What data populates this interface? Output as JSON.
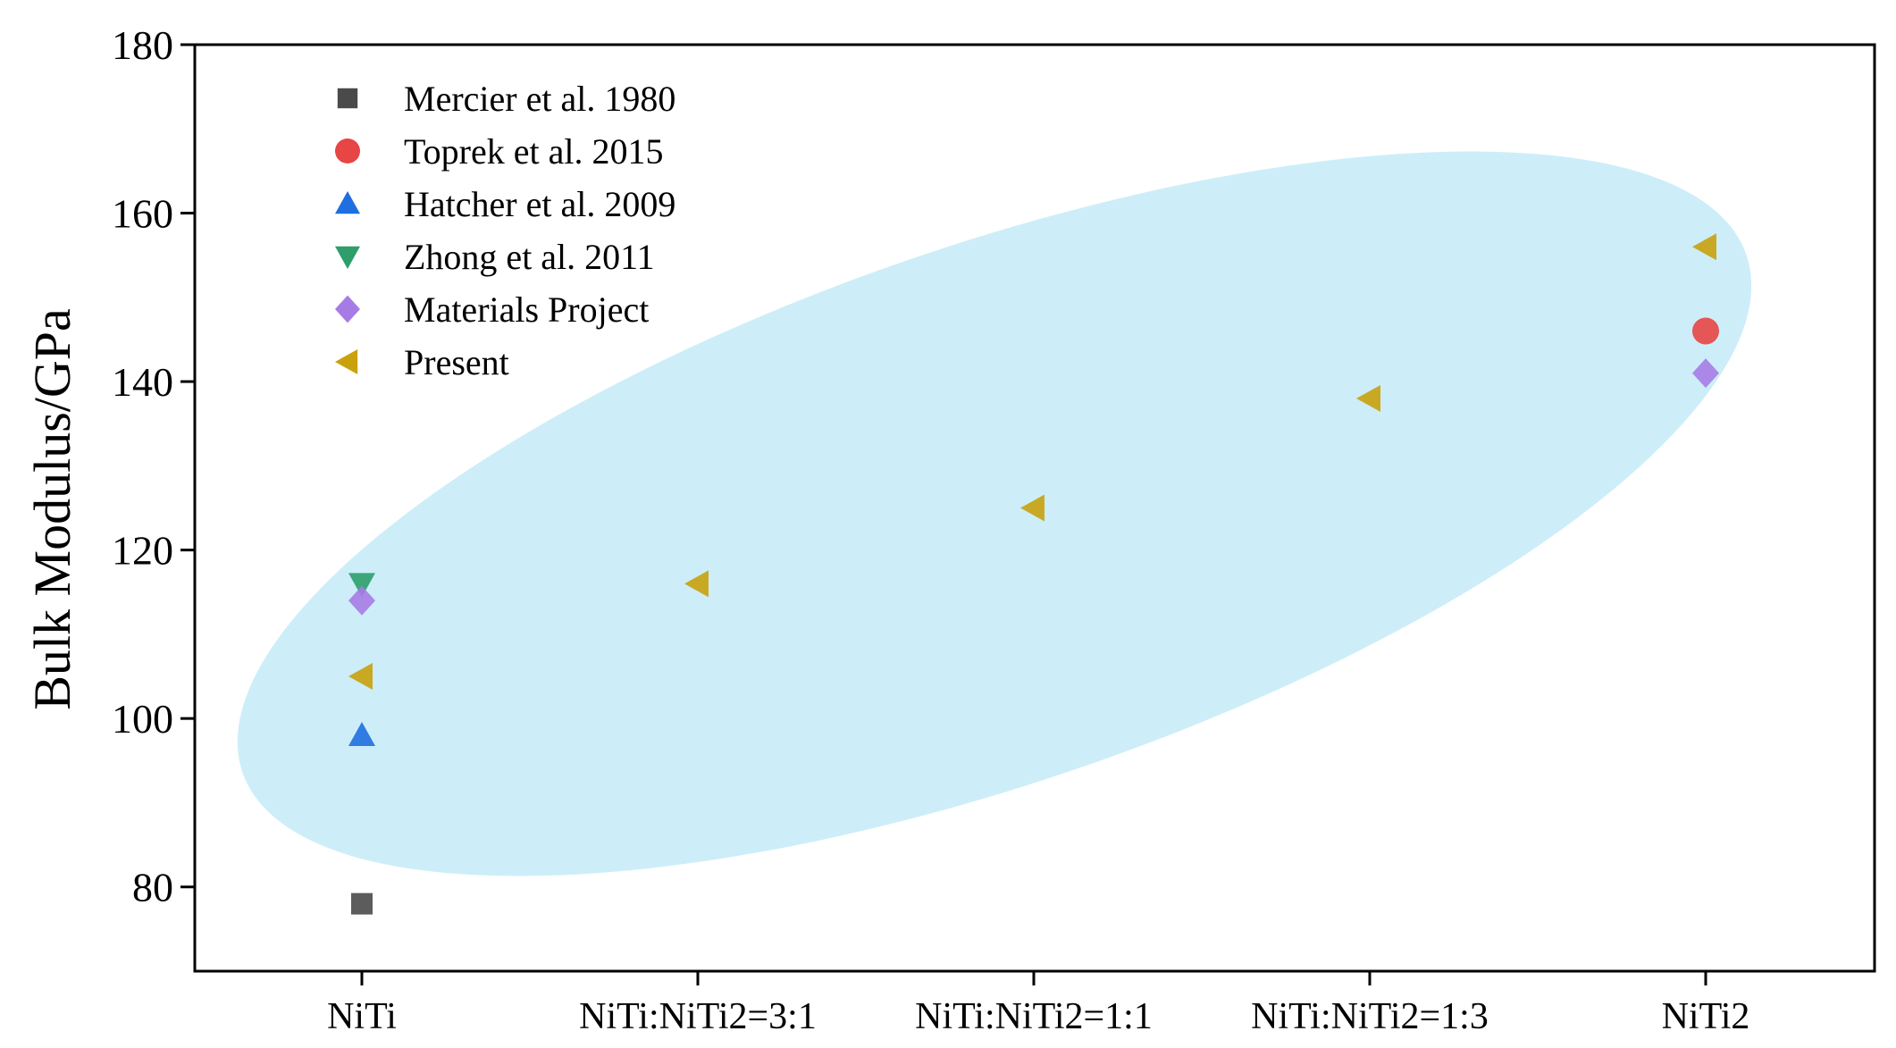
{
  "chart_data": {
    "type": "scatter",
    "title": "",
    "xlabel": "",
    "ylabel": "Bulk Modulus/GPa",
    "categories": [
      "NiTi",
      "NiTi:NiTi2=3:1",
      "NiTi:NiTi2=1:1",
      "NiTi:NiTi2=1:3",
      "NiTi2"
    ],
    "ylim": [
      70,
      180
    ],
    "yticks": [
      80,
      100,
      120,
      140,
      160,
      180
    ],
    "grid": false,
    "legend_position": "top-left",
    "highlight_ellipse_color": "#cdeef8",
    "series": [
      {
        "name": "Mercier et al. 1980",
        "marker": "square",
        "color": "#4a4a4a",
        "points": [
          {
            "category": "NiTi",
            "y": 78
          }
        ]
      },
      {
        "name": "Toprek et al. 2015",
        "marker": "circle",
        "color": "#e84545",
        "points": [
          {
            "category": "NiTi2",
            "y": 146
          }
        ]
      },
      {
        "name": "Hatcher et al. 2009",
        "marker": "triangle-up",
        "color": "#1f6fe0",
        "points": [
          {
            "category": "NiTi",
            "y": 98
          }
        ]
      },
      {
        "name": "Zhong et al. 2011",
        "marker": "triangle-down",
        "color": "#2e9e6a",
        "points": [
          {
            "category": "NiTi",
            "y": 116
          }
        ]
      },
      {
        "name": "Materials Project",
        "marker": "diamond",
        "color": "#a77be6",
        "points": [
          {
            "category": "NiTi",
            "y": 114
          },
          {
            "category": "NiTi2",
            "y": 141
          }
        ]
      },
      {
        "name": "Present",
        "marker": "triangle-left",
        "color": "#c9a10c",
        "points": [
          {
            "category": "NiTi",
            "y": 105
          },
          {
            "category": "NiTi:NiTi2=3:1",
            "y": 116
          },
          {
            "category": "NiTi:NiTi2=1:1",
            "y": 125
          },
          {
            "category": "NiTi:NiTi2=1:3",
            "y": 138
          },
          {
            "category": "NiTi2",
            "y": 156
          }
        ]
      }
    ]
  }
}
